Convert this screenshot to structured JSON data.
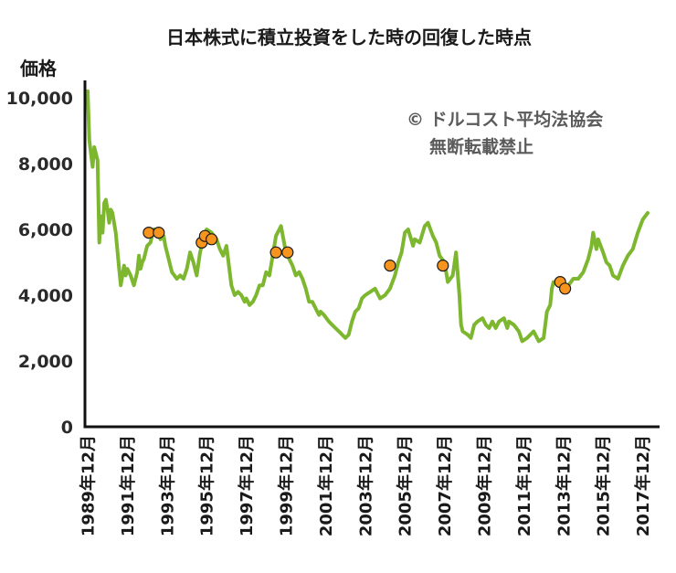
{
  "chart_data": {
    "type": "line",
    "title": "日本株式に積立投資をした時の回復した時点",
    "ylabel": "価格",
    "ylim": [
      0,
      10500
    ],
    "y_ticks": [
      {
        "value": 0,
        "label": "0"
      },
      {
        "value": 2000,
        "label": "2,000"
      },
      {
        "value": 4000,
        "label": "4,000"
      },
      {
        "value": 6000,
        "label": "6,000"
      },
      {
        "value": 8000,
        "label": "8,000"
      },
      {
        "value": 10000,
        "label": "10,000"
      }
    ],
    "x_range": [
      "1989-12",
      "2018-03"
    ],
    "x_ticks": [
      "1989年12月",
      "1991年12月",
      "1993年12月",
      "1995年12月",
      "1997年12月",
      "1999年12月",
      "2001年12月",
      "2003年12月",
      "2005年12月",
      "2007年12月",
      "2009年12月",
      "2011年12月",
      "2013年12月",
      "2015年12月",
      "2017年12月"
    ],
    "annotations": [
      "© ドルコスト平均法協会",
      "無断転載禁止"
    ],
    "line_color": "#7db72f",
    "marker_color": "#f7941d",
    "series": [
      {
        "x": [
          "1989-12",
          "1990-01",
          "1990-03",
          "1990-04",
          "1990-06",
          "1990-07",
          "1990-08",
          "1990-09",
          "1990-10",
          "1990-11",
          "1990-12",
          "1991-01",
          "1991-02",
          "1991-03",
          "1991-05",
          "1991-07",
          "1991-08",
          "1991-10",
          "1991-11",
          "1991-12",
          "1992-02",
          "1992-04",
          "1992-06",
          "1992-07",
          "1992-08",
          "1992-09",
          "1992-10",
          "1992-12",
          "1993-02",
          "1993-04",
          "1993-06",
          "1993-08",
          "1993-10",
          "1993-11",
          "1993-12",
          "1994-03",
          "1994-06",
          "1994-08",
          "1994-10",
          "1994-12",
          "1995-02",
          "1995-04",
          "1995-06",
          "1995-08",
          "1995-10",
          "1995-12",
          "1996-03",
          "1996-06",
          "1996-08",
          "1996-10",
          "1996-12",
          "1997-03",
          "1997-05",
          "1997-07",
          "1997-09",
          "1997-11",
          "1997-12",
          "1998-02",
          "1998-04",
          "1998-06",
          "1998-08",
          "1998-10",
          "1998-12",
          "1999-02",
          "1999-04",
          "1999-06",
          "1999-09",
          "1999-12",
          "2000-02",
          "2000-04",
          "2000-06",
          "2000-08",
          "2000-10",
          "2000-12",
          "2001-02",
          "2001-04",
          "2001-06",
          "2001-08",
          "2001-09",
          "2001-11",
          "2002-02",
          "2002-04",
          "2002-06",
          "2002-08",
          "2002-10",
          "2002-12",
          "2003-02",
          "2003-04",
          "2003-06",
          "2003-08",
          "2003-10",
          "2003-12",
          "2004-03",
          "2004-06",
          "2004-09",
          "2004-12",
          "2005-03",
          "2005-06",
          "2005-08",
          "2005-10",
          "2005-12",
          "2006-02",
          "2006-05",
          "2006-06",
          "2006-09",
          "2006-12",
          "2007-02",
          "2007-05",
          "2007-07",
          "2007-09",
          "2007-12",
          "2008-02",
          "2008-05",
          "2008-07",
          "2008-09",
          "2008-10",
          "2008-11",
          "2009-02",
          "2009-04",
          "2009-06",
          "2009-08",
          "2009-11",
          "2010-01",
          "2010-03",
          "2010-05",
          "2010-07",
          "2010-09",
          "2010-12",
          "2011-02",
          "2011-03",
          "2011-06",
          "2011-09",
          "2011-11",
          "2012-02",
          "2012-04",
          "2012-06",
          "2012-09",
          "2012-12",
          "2013-02",
          "2013-04",
          "2013-05",
          "2013-06",
          "2013-09",
          "2013-12",
          "2014-03",
          "2014-06",
          "2014-09",
          "2014-12",
          "2015-03",
          "2015-05",
          "2015-06",
          "2015-08",
          "2015-09",
          "2015-12",
          "2016-02",
          "2016-04",
          "2016-06",
          "2016-09",
          "2016-12",
          "2017-03",
          "2017-06",
          "2017-09",
          "2017-12",
          "2018-03"
        ],
        "y": [
          10200,
          8700,
          7900,
          8500,
          8100,
          5600,
          6400,
          5900,
          6800,
          6900,
          6600,
          6200,
          6600,
          6500,
          5900,
          4800,
          4300,
          4900,
          4600,
          4800,
          4600,
          4300,
          4700,
          5200,
          4800,
          5000,
          5100,
          5500,
          5600,
          6000,
          6000,
          5700,
          5800,
          5500,
          5300,
          4700,
          4500,
          4600,
          4500,
          4800,
          5300,
          5000,
          4600,
          5300,
          5700,
          6000,
          5900,
          5700,
          5400,
          5200,
          5500,
          4300,
          4000,
          4100,
          4000,
          3800,
          3900,
          3700,
          3800,
          4000,
          4300,
          4300,
          4700,
          4600,
          5200,
          5800,
          6100,
          5300,
          5100,
          4900,
          4600,
          4700,
          4500,
          4200,
          3800,
          3800,
          3600,
          3400,
          3500,
          3400,
          3200,
          3100,
          3000,
          2900,
          2800,
          2700,
          2800,
          3200,
          3500,
          3600,
          3900,
          4000,
          4100,
          4200,
          3900,
          4000,
          4200,
          4600,
          5000,
          5300,
          5900,
          6000,
          5500,
          5700,
          5600,
          6100,
          6200,
          5800,
          5600,
          5200,
          5000,
          4400,
          4600,
          5300,
          4000,
          3100,
          2900,
          2800,
          2700,
          3100,
          3200,
          3300,
          3100,
          3000,
          3200,
          3000,
          3200,
          3300,
          3000,
          3200,
          3100,
          2900,
          2600,
          2700,
          2800,
          2900,
          2600,
          2700,
          3500,
          3700,
          4200,
          4400,
          4300,
          4200,
          4300,
          4500,
          4500,
          4700,
          5100,
          5500,
          5900,
          5400,
          5700,
          5300,
          5000,
          4900,
          4600,
          4500,
          4900,
          5200,
          5400,
          5900,
          6300,
          6500
        ]
      }
    ],
    "recovery_points": [
      {
        "x": "1993-01",
        "y": 5900
      },
      {
        "x": "1993-07",
        "y": 5900
      },
      {
        "x": "1995-09",
        "y": 5600
      },
      {
        "x": "1995-11",
        "y": 5800
      },
      {
        "x": "1996-03",
        "y": 5700
      },
      {
        "x": "1999-06",
        "y": 5300
      },
      {
        "x": "2000-01",
        "y": 5300
      },
      {
        "x": "2005-03",
        "y": 4900
      },
      {
        "x": "2007-11",
        "y": 4900
      },
      {
        "x": "2013-10",
        "y": 4400
      },
      {
        "x": "2014-01",
        "y": 4200
      }
    ]
  }
}
